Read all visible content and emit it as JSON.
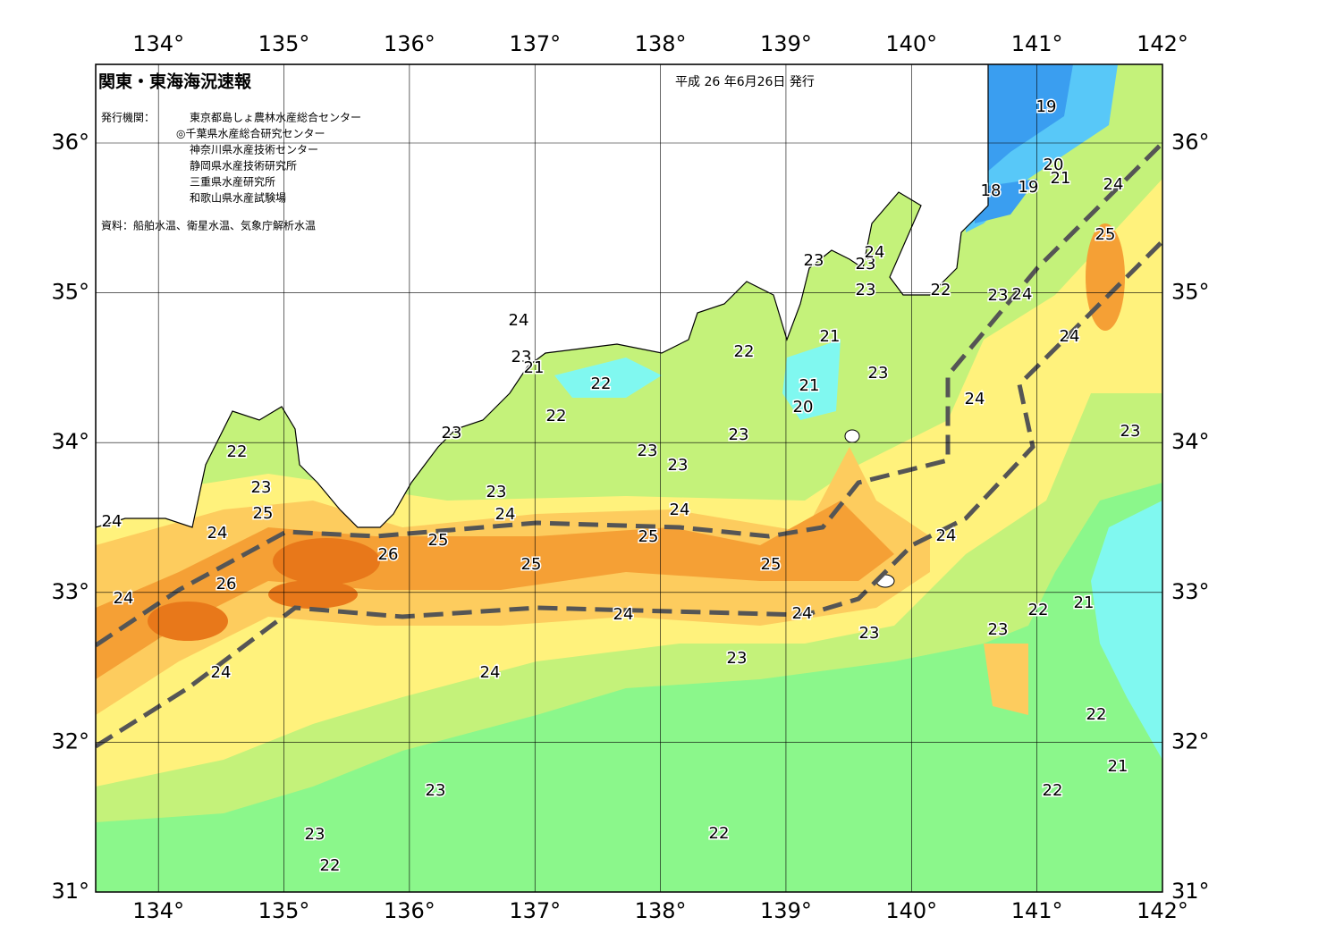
{
  "header": {
    "title": "関東・東海海況速報",
    "date": "平成 26 年6月26日 発行"
  },
  "issuers": {
    "label": "発行機関：",
    "names": [
      "東京都島しょ農林水産総合センター",
      "◎千葉県水産総合研究センター",
      "神奈川県水産技術センター",
      "静岡県水産技術研究所",
      "三重県水産研究所",
      "和歌山県水産試験場"
    ]
  },
  "source": "資料：船舶水温、衛星水温、気象庁解析水温",
  "map": {
    "lon_ticks": [
      {
        "value": 134,
        "label": "134°"
      },
      {
        "value": 135,
        "label": "135°"
      },
      {
        "value": 136,
        "label": "136°"
      },
      {
        "value": 137,
        "label": "137°"
      },
      {
        "value": 138,
        "label": "138°"
      },
      {
        "value": 139,
        "label": "139°"
      },
      {
        "value": 140,
        "label": "140°"
      },
      {
        "value": 141,
        "label": "141°"
      },
      {
        "value": 142,
        "label": "142°"
      }
    ],
    "lat_ticks": [
      {
        "value": 31,
        "label": "31°"
      },
      {
        "value": 32,
        "label": "32°"
      },
      {
        "value": 33,
        "label": "33°"
      },
      {
        "value": 34,
        "label": "34°"
      },
      {
        "value": 35,
        "label": "35°"
      },
      {
        "value": 36,
        "label": "36°"
      }
    ],
    "contour_labels": [
      "19",
      "20",
      "21",
      "19",
      "18",
      "24",
      "25",
      "23",
      "23",
      "24",
      "23",
      "22",
      "23",
      "24",
      "24",
      "23",
      "21",
      "21",
      "22",
      "22",
      "23",
      "24",
      "21",
      "20",
      "24",
      "22",
      "23",
      "23",
      "23",
      "22",
      "23",
      "23",
      "23",
      "23",
      "24",
      "25",
      "24",
      "24",
      "24",
      "24",
      "25",
      "25",
      "26",
      "25",
      "25",
      "26",
      "24",
      "24",
      "24",
      "22",
      "21",
      "23",
      "23",
      "23",
      "24",
      "24",
      "22",
      "21",
      "22",
      "23",
      "23",
      "22",
      "22"
    ]
  }
}
